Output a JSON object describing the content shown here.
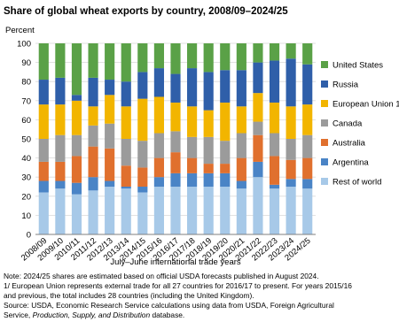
{
  "chart_data": {
    "type": "stacked_bar",
    "title": "Share of global wheat exports by country, 2008/09–2024/25",
    "y_label": "Percent",
    "x_label": "July–June international trade years",
    "categories": [
      "2008/09",
      "2009/10",
      "2010/11",
      "2011/12",
      "2012/13",
      "2013/14",
      "2014/15",
      "2015/16",
      "2016/17",
      "2017/18",
      "2018/19",
      "2019/20",
      "2020/21",
      "2021/22",
      "2022/23",
      "2023/24",
      "2024/25"
    ],
    "series": [
      {
        "name": "Rest of world",
        "color": "#a7c9e8",
        "values": [
          22,
          24,
          21,
          23,
          25,
          24,
          22,
          25,
          25,
          25,
          25,
          25,
          24,
          30,
          24,
          25,
          24
        ]
      },
      {
        "name": "Argentina",
        "color": "#4a84c6",
        "values": [
          6,
          4,
          6,
          7,
          3,
          1,
          3,
          5,
          7,
          7,
          7,
          7,
          4,
          8,
          2,
          4,
          5
        ]
      },
      {
        "name": "Australia",
        "color": "#e0702e",
        "values": [
          10,
          10,
          14,
          16,
          17,
          11,
          10,
          10,
          11,
          8,
          5,
          5,
          12,
          14,
          15,
          10,
          11
        ]
      },
      {
        "name": "Canada",
        "color": "#9b9b9b",
        "values": [
          12,
          14,
          11,
          11,
          13,
          14,
          14,
          13,
          11,
          11,
          14,
          12,
          13,
          7,
          12,
          11,
          12
        ]
      },
      {
        "name": "European Union 1/",
        "color": "#f2b500",
        "values": [
          18,
          16,
          18,
          10,
          15,
          17,
          22,
          19,
          15,
          16,
          14,
          20,
          14,
          15,
          16,
          17,
          16
        ]
      },
      {
        "name": "Russia",
        "color": "#2f5fa9",
        "values": [
          13,
          14,
          3,
          15,
          8,
          13,
          14,
          15,
          15,
          20,
          20,
          17,
          19,
          16,
          22,
          25,
          21
        ]
      },
      {
        "name": "United States",
        "color": "#5aa147",
        "values": [
          19,
          18,
          27,
          18,
          19,
          20,
          15,
          13,
          16,
          13,
          15,
          14,
          14,
          10,
          9,
          8,
          11
        ]
      }
    ],
    "ylim": [
      0,
      100
    ],
    "yticks": [
      0,
      10,
      20,
      30,
      40,
      50,
      60,
      70,
      80,
      90,
      100
    ],
    "grid": true,
    "notes": [
      "Note: 2024/25 shares are estimated based on official USDA forecasts published in August 2024.",
      "1/ European Union represents external trade for all 27 countries for 2016/17 to present. For years 2015/16",
      "and previous, the total includes 28 countries (including the United Kingdom)."
    ],
    "source": [
      "Source: USDA, Economic Research Service calculations using data from USDA, Foreign Agricultural",
      "Service, ",
      "Production, Supply, and Distribution",
      " database."
    ]
  }
}
